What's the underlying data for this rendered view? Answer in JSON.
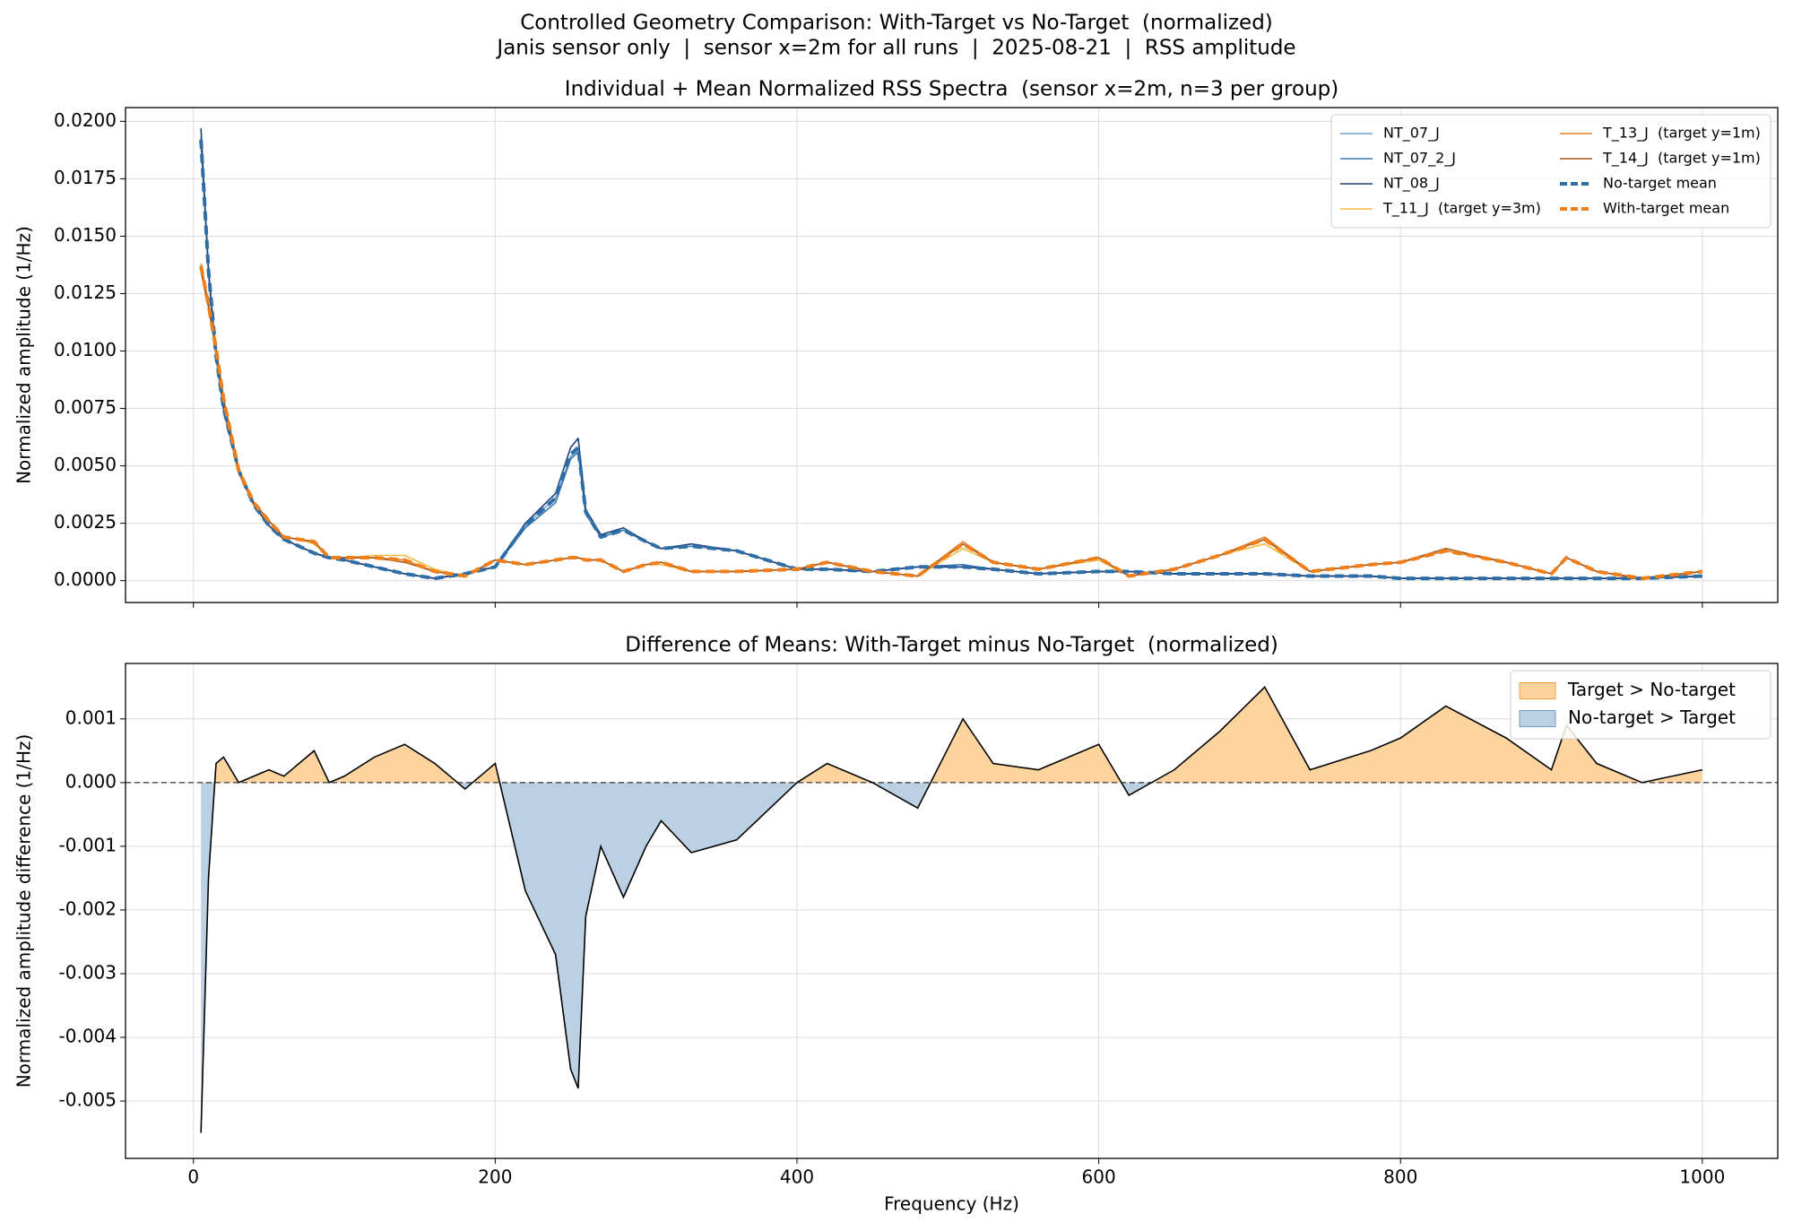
{
  "title": "Controlled Geometry Comparison: With-Target vs No-Target  (normalized)",
  "subtitle": "Janis sensor only  |  sensor x=2m for all runs  |  2025-08-21  |  RSS amplitude",
  "chart_data": [
    {
      "type": "line",
      "title": "Individual + Mean Normalized RSS Spectra  (sensor x=2m, n=3 per group)",
      "y_label": "Normalized amplitude (1/Hz)",
      "xlim": [
        -45,
        1050
      ],
      "xticks": [
        0,
        200,
        400,
        600,
        800,
        1000
      ],
      "ylim": [
        -0.00095,
        0.0206
      ],
      "yticks": [
        {
          "value": 0,
          "label": "0.0000"
        },
        {
          "value": 0.0025,
          "label": "0.0025"
        },
        {
          "value": 0.005,
          "label": "0.0050"
        },
        {
          "value": 0.0075,
          "label": "0.0075"
        },
        {
          "value": 0.01,
          "label": "0.0100"
        },
        {
          "value": 0.0125,
          "label": "0.0125"
        },
        {
          "value": 0.015,
          "label": "0.0150"
        },
        {
          "value": 0.0175,
          "label": "0.0175"
        },
        {
          "value": 0.02,
          "label": "0.0200"
        }
      ],
      "grid": true,
      "legend": "upper right",
      "legend_columns": 2,
      "x": [
        5,
        10,
        15,
        20,
        30,
        40,
        50,
        60,
        70,
        80,
        90,
        100,
        120,
        140,
        160,
        180,
        200,
        220,
        240,
        250,
        255,
        260,
        270,
        285,
        300,
        310,
        330,
        360,
        400,
        420,
        450,
        480,
        510,
        530,
        560,
        600,
        620,
        650,
        680,
        710,
        740,
        780,
        800,
        830,
        870,
        900,
        910,
        930,
        960,
        1000
      ],
      "series": [
        {
          "name": "NT_07_J",
          "color": "#6a9fd0",
          "linestyle": "solid",
          "values": [
            0.019,
            0.0135,
            0.0098,
            0.0075,
            0.0048,
            0.0033,
            0.0024,
            0.0018,
            0.0015,
            0.0012,
            0.001,
            0.0009,
            0.0006,
            0.0003,
            0.0001,
            0.0003,
            0.0006,
            0.0024,
            0.0036,
            0.0054,
            0.0057,
            0.003,
            0.0019,
            0.0022,
            0.0017,
            0.0014,
            0.0015,
            0.0013,
            0.0005,
            0.0005,
            0.0004,
            0.0006,
            0.0006,
            0.0005,
            0.0003,
            0.0004,
            0.0004,
            0.0003,
            0.0003,
            0.0003,
            0.0002,
            0.0002,
            0.0001,
            0.0001,
            0.0001,
            0.0001,
            0.0001,
            0.0001,
            0.0001,
            0.0002
          ]
        },
        {
          "name": "NT_07_2_J",
          "color": "#3a78b0",
          "linestyle": "solid",
          "values": [
            0.0193,
            0.0136,
            0.0097,
            0.0074,
            0.0047,
            0.0033,
            0.0024,
            0.0018,
            0.0015,
            0.0012,
            0.001,
            0.0009,
            0.0006,
            0.0003,
            0.0001,
            0.0003,
            0.0006,
            0.0023,
            0.0034,
            0.0053,
            0.0056,
            0.0029,
            0.0019,
            0.0022,
            0.0017,
            0.0014,
            0.0015,
            0.0013,
            0.0005,
            0.0005,
            0.0004,
            0.0006,
            0.0007,
            0.0005,
            0.0003,
            0.0004,
            0.0004,
            0.0003,
            0.0003,
            0.0003,
            0.0002,
            0.0002,
            0.0001,
            0.0001,
            0.0001,
            0.0001,
            0.0001,
            0.0001,
            0.0001,
            0.0002
          ]
        },
        {
          "name": "NT_08_J",
          "color": "#1f3f7a",
          "linestyle": "solid",
          "values": [
            0.0197,
            0.0134,
            0.0099,
            0.0076,
            0.0049,
            0.0033,
            0.0024,
            0.0018,
            0.0015,
            0.0012,
            0.001,
            0.0009,
            0.0006,
            0.0003,
            0.0001,
            0.0003,
            0.0006,
            0.0025,
            0.0038,
            0.0058,
            0.0062,
            0.0031,
            0.002,
            0.0023,
            0.0017,
            0.0014,
            0.0016,
            0.0013,
            0.0005,
            0.0005,
            0.0004,
            0.0006,
            0.0006,
            0.0005,
            0.0003,
            0.0004,
            0.0004,
            0.0003,
            0.0003,
            0.0003,
            0.0002,
            0.0002,
            0.0001,
            0.0001,
            0.0001,
            0.0001,
            0.0001,
            0.0001,
            0.0001,
            0.0002
          ]
        },
        {
          "name": "T_11_J  (target y=3m)",
          "color": "#f5b942",
          "linestyle": "solid",
          "values": [
            0.0136,
            0.012,
            0.0102,
            0.008,
            0.0049,
            0.0034,
            0.0026,
            0.0019,
            0.0018,
            0.0016,
            0.001,
            0.001,
            0.0011,
            0.0011,
            0.0005,
            0.0002,
            0.0009,
            0.0007,
            0.0009,
            0.001,
            0.001,
            0.0009,
            0.0009,
            0.0004,
            0.0007,
            0.0007,
            0.0004,
            0.0004,
            0.0005,
            0.0008,
            0.0004,
            0.0002,
            0.0014,
            0.0008,
            0.0005,
            0.0009,
            0.0002,
            0.0005,
            0.0011,
            0.0016,
            0.0004,
            0.0007,
            0.0008,
            0.0013,
            0.0008,
            0.0003,
            0.001,
            0.0004,
            0.0001,
            0.0004
          ]
        },
        {
          "name": "T_13_J  (target y=1m)",
          "color": "#e0802a",
          "linestyle": "solid",
          "values": [
            0.0138,
            0.0121,
            0.0101,
            0.0079,
            0.0048,
            0.0034,
            0.0026,
            0.0019,
            0.0018,
            0.0017,
            0.001,
            0.001,
            0.001,
            0.0009,
            0.0004,
            0.0002,
            0.0009,
            0.0007,
            0.0009,
            0.001,
            0.001,
            0.0009,
            0.0009,
            0.0004,
            0.0007,
            0.0008,
            0.0004,
            0.0004,
            0.0005,
            0.0008,
            0.0004,
            0.0002,
            0.0017,
            0.0008,
            0.0005,
            0.001,
            0.0002,
            0.0005,
            0.0011,
            0.0019,
            0.0004,
            0.0007,
            0.0008,
            0.0013,
            0.0008,
            0.0003,
            0.001,
            0.0004,
            0.0001,
            0.0004
          ]
        },
        {
          "name": "T_14_J  (target y=1m)",
          "color": "#a85a1f",
          "linestyle": "solid",
          "values": [
            0.0135,
            0.0119,
            0.01,
            0.0078,
            0.0048,
            0.0034,
            0.0026,
            0.0019,
            0.0018,
            0.0017,
            0.001,
            0.001,
            0.001,
            0.0008,
            0.0004,
            0.0002,
            0.0009,
            0.0007,
            0.0009,
            0.001,
            0.001,
            0.0009,
            0.0009,
            0.0004,
            0.0007,
            0.0008,
            0.0004,
            0.0004,
            0.0005,
            0.0008,
            0.0004,
            0.0002,
            0.0016,
            0.0008,
            0.0005,
            0.001,
            0.0002,
            0.0005,
            0.0011,
            0.0018,
            0.0004,
            0.0007,
            0.0008,
            0.0014,
            0.0008,
            0.0003,
            0.001,
            0.0004,
            0.0001,
            0.0004
          ]
        },
        {
          "name": "No-target mean",
          "color": "#2e6ea6",
          "linestyle": "dashed",
          "values": [
            0.0192,
            0.0135,
            0.0098,
            0.0075,
            0.0048,
            0.0033,
            0.0024,
            0.0018,
            0.0015,
            0.0012,
            0.001,
            0.0009,
            0.0006,
            0.0003,
            0.0001,
            0.0003,
            0.0006,
            0.0024,
            0.0036,
            0.0055,
            0.0058,
            0.003,
            0.0019,
            0.0022,
            0.0017,
            0.0014,
            0.0015,
            0.0013,
            0.0005,
            0.0005,
            0.0004,
            0.0006,
            0.0006,
            0.0005,
            0.0003,
            0.0004,
            0.0004,
            0.0003,
            0.0003,
            0.0003,
            0.0002,
            0.0002,
            0.0001,
            0.0001,
            0.0001,
            0.0001,
            0.0001,
            0.0001,
            0.0001,
            0.0002
          ]
        },
        {
          "name": "With-target mean",
          "color": "#f07f1a",
          "linestyle": "dashed",
          "values": [
            0.0137,
            0.012,
            0.0101,
            0.0079,
            0.0048,
            0.0034,
            0.0026,
            0.0019,
            0.0018,
            0.0017,
            0.001,
            0.001,
            0.001,
            0.0009,
            0.0004,
            0.0002,
            0.0009,
            0.0007,
            0.0009,
            0.001,
            0.001,
            0.0009,
            0.0009,
            0.0004,
            0.0007,
            0.0008,
            0.0004,
            0.0004,
            0.0005,
            0.0008,
            0.0004,
            0.0002,
            0.0016,
            0.0008,
            0.0005,
            0.001,
            0.0002,
            0.0005,
            0.0011,
            0.0018,
            0.0004,
            0.0007,
            0.0008,
            0.0013,
            0.0008,
            0.0003,
            0.001,
            0.0004,
            0.0001,
            0.0004
          ]
        }
      ]
    },
    {
      "type": "area",
      "title": "Difference of Means: With-Target minus No-Target  (normalized)",
      "x_label": "Frequency (Hz)",
      "y_label": "Normalized amplitude difference (1/Hz)",
      "xlim": [
        -45,
        1050
      ],
      "xticks": [
        0,
        200,
        400,
        600,
        800,
        1000
      ],
      "ylim": [
        -0.0059,
        0.00187
      ],
      "yticks": [
        {
          "value": -0.005,
          "label": "-0.005"
        },
        {
          "value": -0.004,
          "label": "-0.004"
        },
        {
          "value": -0.003,
          "label": "-0.003"
        },
        {
          "value": -0.002,
          "label": "-0.002"
        },
        {
          "value": -0.001,
          "label": "-0.001"
        },
        {
          "value": 0,
          "label": "0.000"
        },
        {
          "value": 0.001,
          "label": "0.001"
        }
      ],
      "grid": true,
      "legend": "upper right",
      "line_color": "#000000",
      "reference_line": 0,
      "x": [
        5,
        10,
        15,
        20,
        30,
        40,
        50,
        60,
        70,
        80,
        90,
        100,
        120,
        140,
        160,
        180,
        200,
        220,
        240,
        250,
        255,
        260,
        270,
        285,
        300,
        310,
        330,
        360,
        400,
        420,
        450,
        480,
        510,
        530,
        560,
        600,
        620,
        650,
        680,
        710,
        740,
        780,
        800,
        830,
        870,
        900,
        910,
        930,
        960,
        1000
      ],
      "values": [
        -0.0055,
        -0.0015,
        0.0003,
        0.0004,
        0,
        0.0001,
        0.0002,
        0.0001,
        0.0003,
        0.0005,
        0,
        0.0001,
        0.0004,
        0.0006,
        0.0003,
        -0.0001,
        0.0003,
        -0.0017,
        -0.0027,
        -0.0045,
        -0.0048,
        -0.0021,
        -0.001,
        -0.0018,
        -0.001,
        -0.0006,
        -0.0011,
        -0.0009,
        0,
        0.0003,
        0,
        -0.0004,
        0.001,
        0.0003,
        0.0002,
        0.0006,
        -0.0002,
        0.0002,
        0.0008,
        0.0015,
        0.0002,
        0.0005,
        0.0007,
        0.0012,
        0.0007,
        0.0002,
        0.0009,
        0.0003,
        0,
        0.0002
      ],
      "fills": [
        {
          "name": "Target > No-target",
          "color": "#fdd49e",
          "edge": "#f0a040",
          "where": "above"
        },
        {
          "name": "No-target > Target",
          "color": "#bcd0e4",
          "edge": "#6f9cc4",
          "where": "below"
        }
      ]
    }
  ]
}
